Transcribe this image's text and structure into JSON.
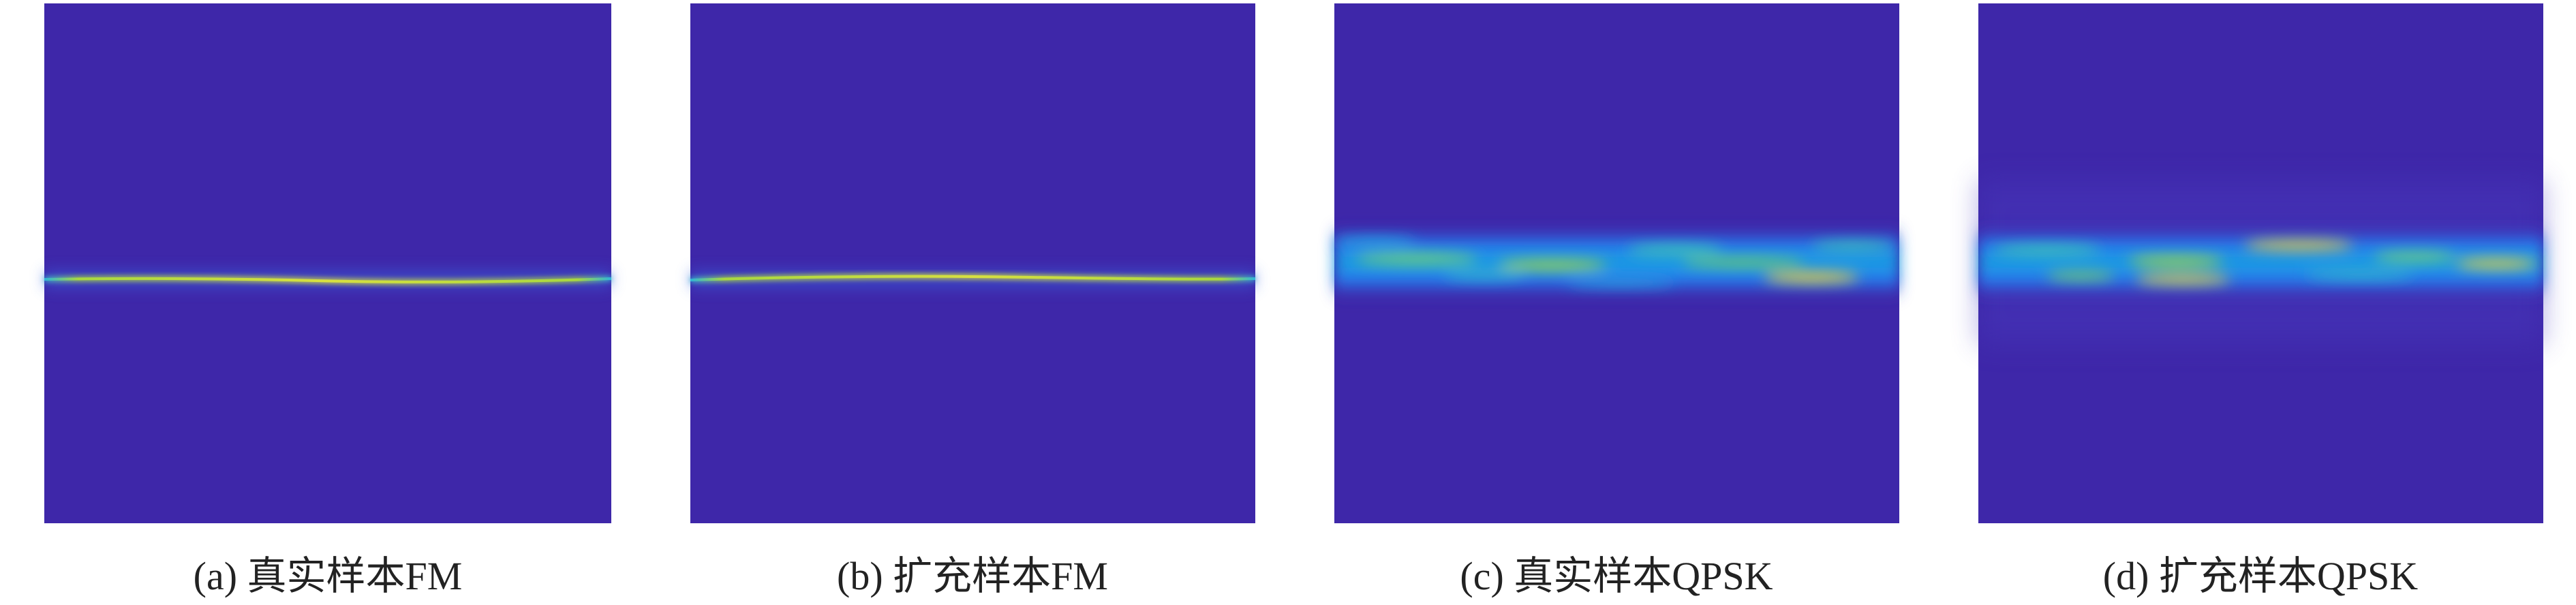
{
  "panels": [
    {
      "caption": "(a) 真实样本FM"
    },
    {
      "caption": "(b) 扩充样本FM"
    },
    {
      "caption": "(c) 真实样本QPSK"
    },
    {
      "caption": "(d) 扩充样本QPSK"
    }
  ]
}
